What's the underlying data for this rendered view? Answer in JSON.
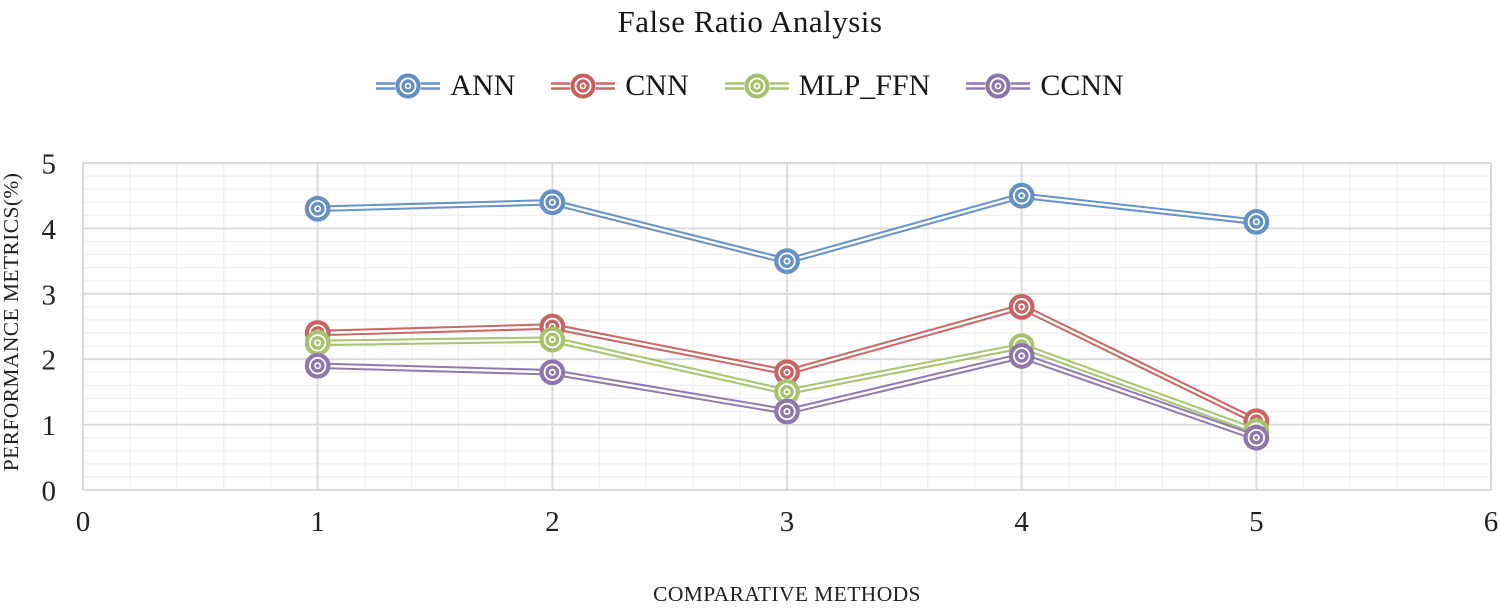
{
  "chart_data": {
    "type": "line",
    "title": "False Ratio Analysis",
    "xlabel": "COMPARATIVE METHODS",
    "ylabel": "PERFORMANCE METRICS(%)",
    "x": [
      1,
      2,
      3,
      4,
      5
    ],
    "xlim": [
      0,
      6
    ],
    "ylim": [
      0,
      5
    ],
    "x_ticks": [
      0,
      1,
      2,
      3,
      4,
      5,
      6
    ],
    "y_ticks": [
      0,
      1,
      2,
      3,
      4,
      5
    ],
    "minor_grid_step": 0.2,
    "grid": true,
    "legend_position": "top",
    "marker_style": "bullseye-circle",
    "line_style": "double",
    "series": [
      {
        "name": "ANN",
        "color": "#4F81BD",
        "values": [
          4.3,
          4.4,
          3.5,
          4.5,
          4.1
        ]
      },
      {
        "name": "CNN",
        "color": "#C0504D",
        "values": [
          2.4,
          2.5,
          1.8,
          2.8,
          1.05
        ]
      },
      {
        "name": "MLP_FFN",
        "color": "#9BBB59",
        "values": [
          2.25,
          2.3,
          1.5,
          2.2,
          0.9
        ]
      },
      {
        "name": "CCNN",
        "color": "#8064A2",
        "values": [
          1.9,
          1.8,
          1.2,
          2.05,
          0.8
        ]
      }
    ],
    "grid_major_color": "#d9d9d9",
    "grid_minor_color": "#f0f0f0"
  }
}
